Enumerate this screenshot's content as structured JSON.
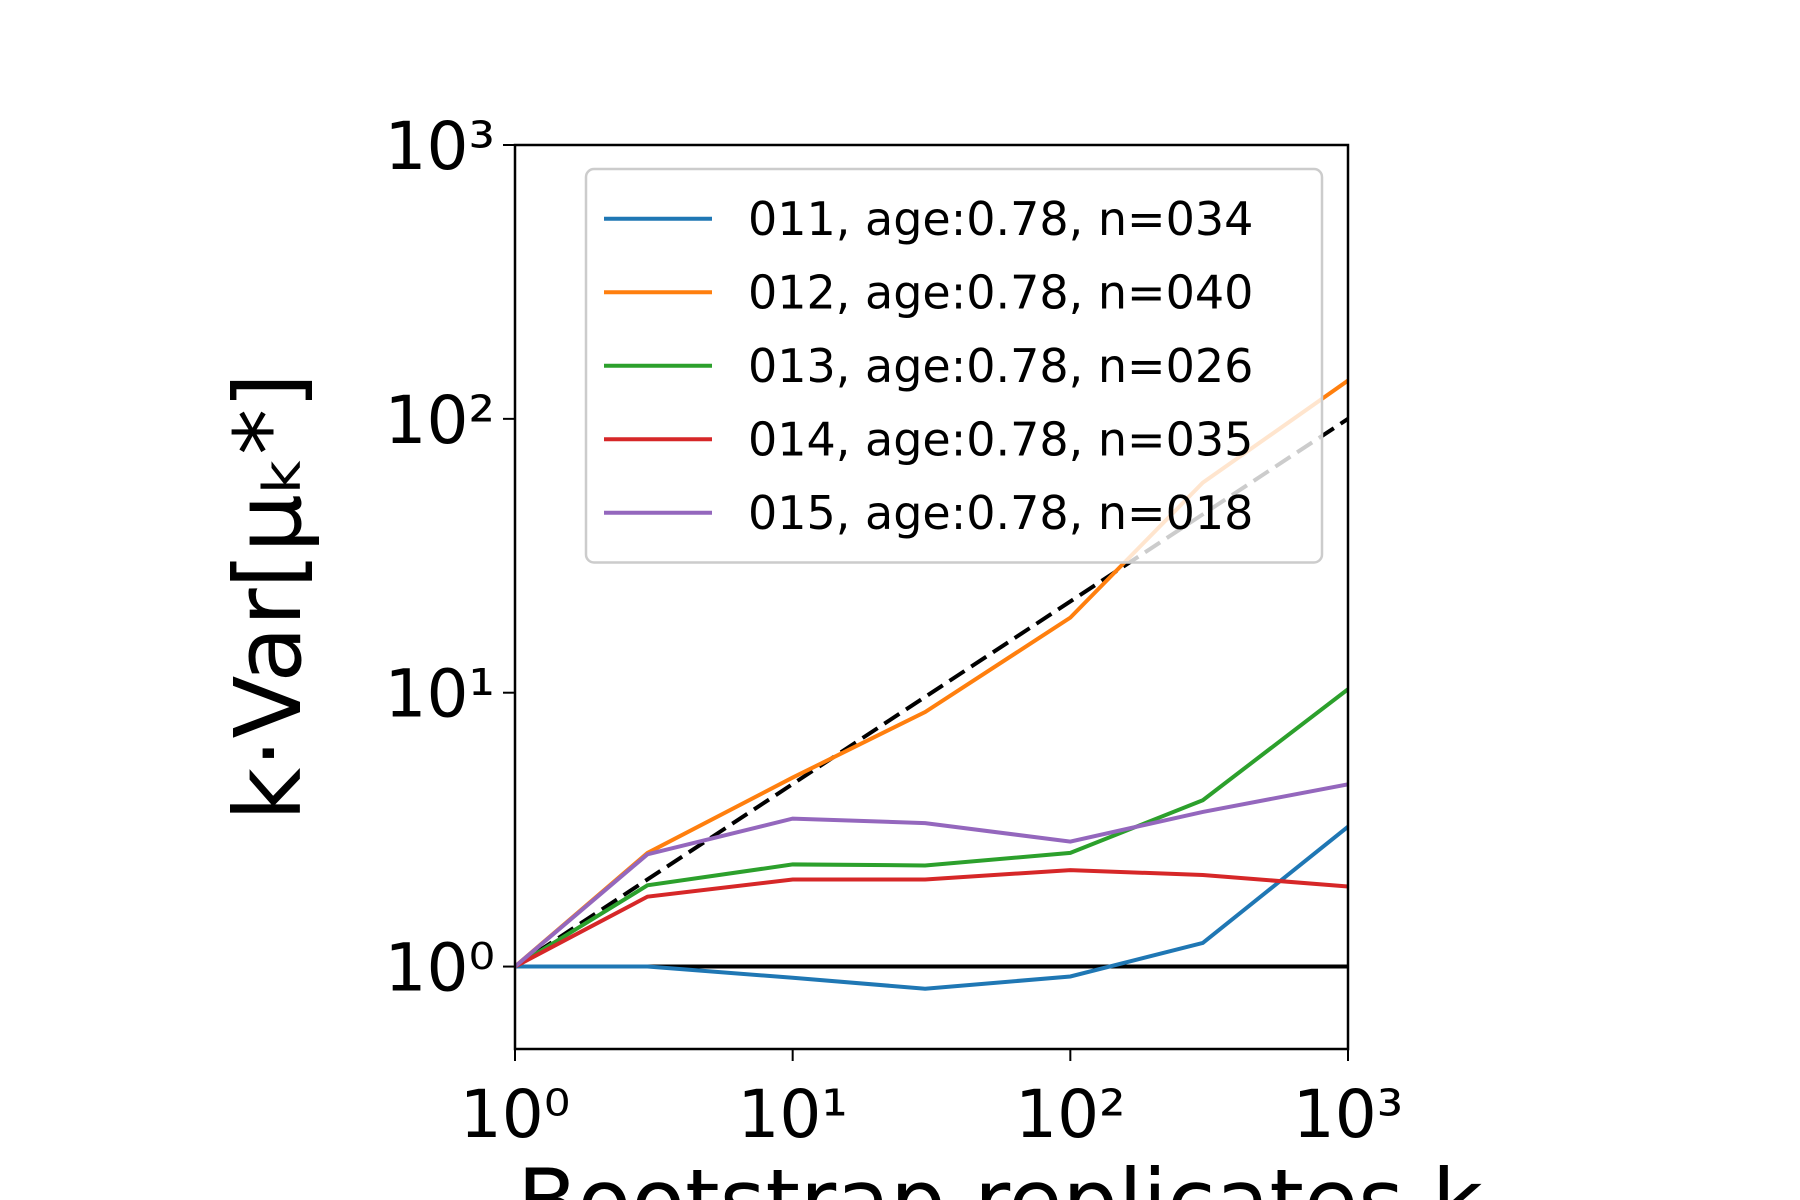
{
  "chart_data": {
    "type": "line",
    "y_label": "k·Var[μₖ*]",
    "x_label": "Bootstrap replicates k",
    "log_x": true,
    "log_y": true,
    "xlim": [
      1,
      1000
    ],
    "ylim": [
      0.5,
      1000
    ],
    "xticks": [
      {
        "value": 1,
        "label": "10⁰"
      },
      {
        "value": 10,
        "label": "10¹"
      },
      {
        "value": 100,
        "label": "10²"
      },
      {
        "value": 1000,
        "label": "10³"
      }
    ],
    "yticks": [
      {
        "value": 1,
        "label": "10⁰"
      },
      {
        "value": 10,
        "label": "10¹"
      },
      {
        "value": 100,
        "label": "10²"
      },
      {
        "value": 1000,
        "label": "10³"
      }
    ],
    "x": [
      1,
      3,
      10,
      30,
      100,
      300,
      1000
    ],
    "series": [
      {
        "name": "011, age:0.78, n=034",
        "color": "#1f77b4",
        "values": [
          1,
          1,
          0.91,
          0.83,
          0.92,
          1.22,
          3.24
        ]
      },
      {
        "name": "012, age:0.78, n=040",
        "color": "#ff7f0e",
        "values": [
          1,
          2.6,
          4.9,
          8.5,
          18.8,
          58.5,
          138
        ]
      },
      {
        "name": "013, age:0.78, n=026",
        "color": "#2ca02c",
        "values": [
          1,
          1.98,
          2.36,
          2.34,
          2.6,
          4.05,
          10.3
        ]
      },
      {
        "name": "014, age:0.78, n=035",
        "color": "#d62728",
        "values": [
          1,
          1.8,
          2.08,
          2.08,
          2.25,
          2.16,
          1.96
        ]
      },
      {
        "name": "015, age:0.78, n=018",
        "color": "#9467bd",
        "values": [
          1,
          2.57,
          3.47,
          3.34,
          2.86,
          3.67,
          4.63
        ]
      }
    ],
    "reference_lines": [
      {
        "x": [
          1,
          1000
        ],
        "values": [
          1,
          100
        ],
        "color": "#000000",
        "dashed": true
      },
      {
        "x": [
          1,
          1000
        ],
        "values": [
          1,
          1
        ],
        "color": "#000000",
        "dashed": false
      }
    ],
    "legend": "upper right"
  }
}
